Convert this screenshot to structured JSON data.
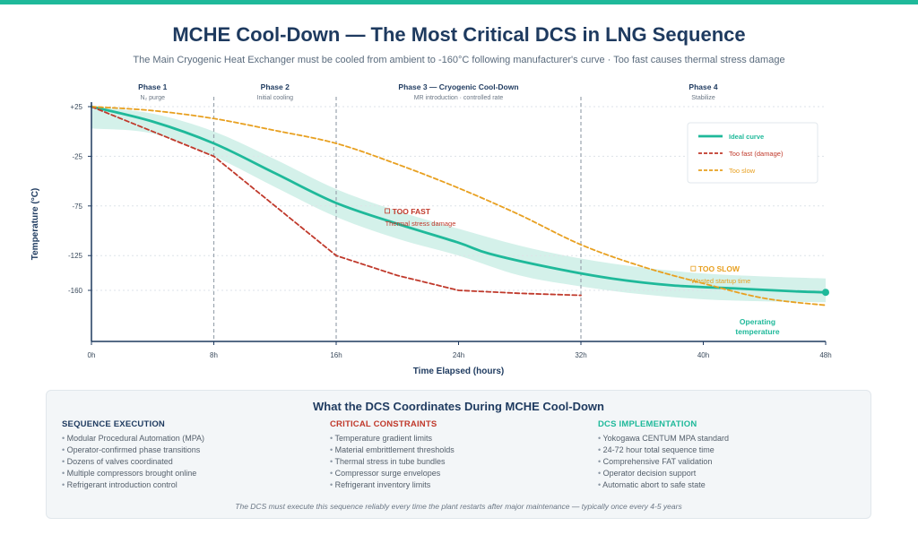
{
  "page": {
    "title": "MCHE Cool-Down — The Most Critical DCS in LNG Sequence",
    "subtitle": "The Main Cryogenic Heat Exchanger must be cooled from ambient to -160°C following manufacturer's curve · Too fast causes thermal stress damage"
  },
  "colors": {
    "accent": "#1fb99a",
    "ideal": "#1fb99a",
    "band": "#d4f1ea",
    "too_fast": "#c0392b",
    "too_slow": "#e8a020",
    "axis": "#1e3a5f"
  },
  "chart_data": {
    "type": "line",
    "xlabel": "Time Elapsed (hours)",
    "ylabel": "Temperature (°C)",
    "xlim": [
      0,
      48
    ],
    "ylim": [
      -185,
      25
    ],
    "x_ticks": [
      {
        "v": 0,
        "label": "0h"
      },
      {
        "v": 8,
        "label": "8h"
      },
      {
        "v": 16,
        "label": "16h"
      },
      {
        "v": 24,
        "label": "24h"
      },
      {
        "v": 32,
        "label": "32h"
      },
      {
        "v": 40,
        "label": "40h"
      },
      {
        "v": 48,
        "label": "48h"
      }
    ],
    "y_ticks": [
      {
        "v": 25,
        "label": "+25"
      },
      {
        "v": -25,
        "label": "-25"
      },
      {
        "v": -75,
        "label": "-75"
      },
      {
        "v": -125,
        "label": "-125"
      },
      {
        "v": -160,
        "label": "-160"
      }
    ],
    "grid": true,
    "legend_position": "top-right",
    "phases": [
      {
        "name": "Phase 1",
        "desc": "N₂ purge",
        "center": 4
      },
      {
        "name": "Phase 2",
        "desc": "Initial cooling",
        "center": 12
      },
      {
        "name": "Phase 3 — Cryogenic Cool-Down",
        "desc": "MR introduction · controlled rate",
        "center": 24
      },
      {
        "name": "Phase 4",
        "desc": "Stabilize",
        "center": 40
      }
    ],
    "phase_boundaries": [
      8,
      16,
      32
    ],
    "series": [
      {
        "name": "Ideal curve",
        "color": "#1fb99a",
        "style": "solid",
        "x": [
          0,
          4,
          8,
          12,
          16,
          20,
          24,
          26,
          30,
          34,
          38,
          42,
          46,
          48
        ],
        "y": [
          25,
          10,
          -12,
          -42,
          -72,
          -93,
          -112,
          -123,
          -137,
          -148,
          -155,
          -158,
          -161,
          -162
        ]
      },
      {
        "name": "Too fast (damage)",
        "color": "#c0392b",
        "style": "dashed",
        "x": [
          0,
          4,
          8,
          12,
          16,
          20,
          24,
          28,
          32
        ],
        "y": [
          25,
          0,
          -25,
          -75,
          -125,
          -145,
          -160,
          -163,
          -165
        ]
      },
      {
        "name": "Too slow",
        "color": "#e8a020",
        "style": "dashed",
        "x": [
          0,
          4,
          8,
          12,
          16,
          20,
          24,
          28,
          32,
          36,
          40,
          44,
          48
        ],
        "y": [
          25,
          21,
          13,
          1,
          -12,
          -33,
          -57,
          -84,
          -114,
          -136,
          -153,
          -168,
          -175
        ]
      }
    ],
    "band": {
      "x": [
        0,
        4,
        8,
        12,
        16,
        20,
        24,
        28,
        32,
        36,
        40,
        44,
        48
      ],
      "upper": [
        25,
        18,
        0,
        -28,
        -58,
        -80,
        -98,
        -115,
        -128,
        -137,
        -143,
        -146,
        -148
      ],
      "lower": [
        3,
        -2,
        -25,
        -56,
        -86,
        -108,
        -125,
        -145,
        -156,
        -164,
        -169,
        -171,
        -172
      ]
    },
    "annotations": [
      {
        "title": "TOO FAST",
        "text": "Thermal stress damage",
        "color": "#c0392b",
        "at": [
          19.2,
          -85
        ]
      },
      {
        "title": "TOO SLOW",
        "text": "Wasted startup time",
        "color": "#e8a020",
        "at": [
          39.2,
          -143
        ]
      },
      {
        "title": "Operating",
        "text": "temperature",
        "color": "#1fb99a",
        "at": [
          43,
          -190
        ]
      }
    ]
  },
  "panel": {
    "title": "What the DCS Coordinates During MCHE Cool-Down",
    "columns": [
      {
        "heading": "SEQUENCE EXECUTION",
        "color": "#1e3a5f",
        "items": [
          "Modular Procedural Automation (MPA)",
          "Operator-confirmed phase transitions",
          "Dozens of valves coordinated",
          "Multiple compressors brought online",
          "Refrigerant introduction control"
        ]
      },
      {
        "heading": "CRITICAL CONSTRAINTS",
        "color": "#c0392b",
        "items": [
          "Temperature gradient limits",
          "Material embrittlement thresholds",
          "Thermal stress in tube bundles",
          "Compressor surge envelopes",
          "Refrigerant inventory limits"
        ]
      },
      {
        "heading": "DCS IMPLEMENTATION",
        "color": "#1fb99a",
        "items": [
          "Yokogawa CENTUM MPA standard",
          "24-72 hour total sequence time",
          "Comprehensive FAT validation",
          "Operator decision support",
          "Automatic abort to safe state"
        ]
      }
    ],
    "footnote": "The DCS must execute this sequence reliably every time the plant restarts after major maintenance — typically once every 4-5 years"
  }
}
